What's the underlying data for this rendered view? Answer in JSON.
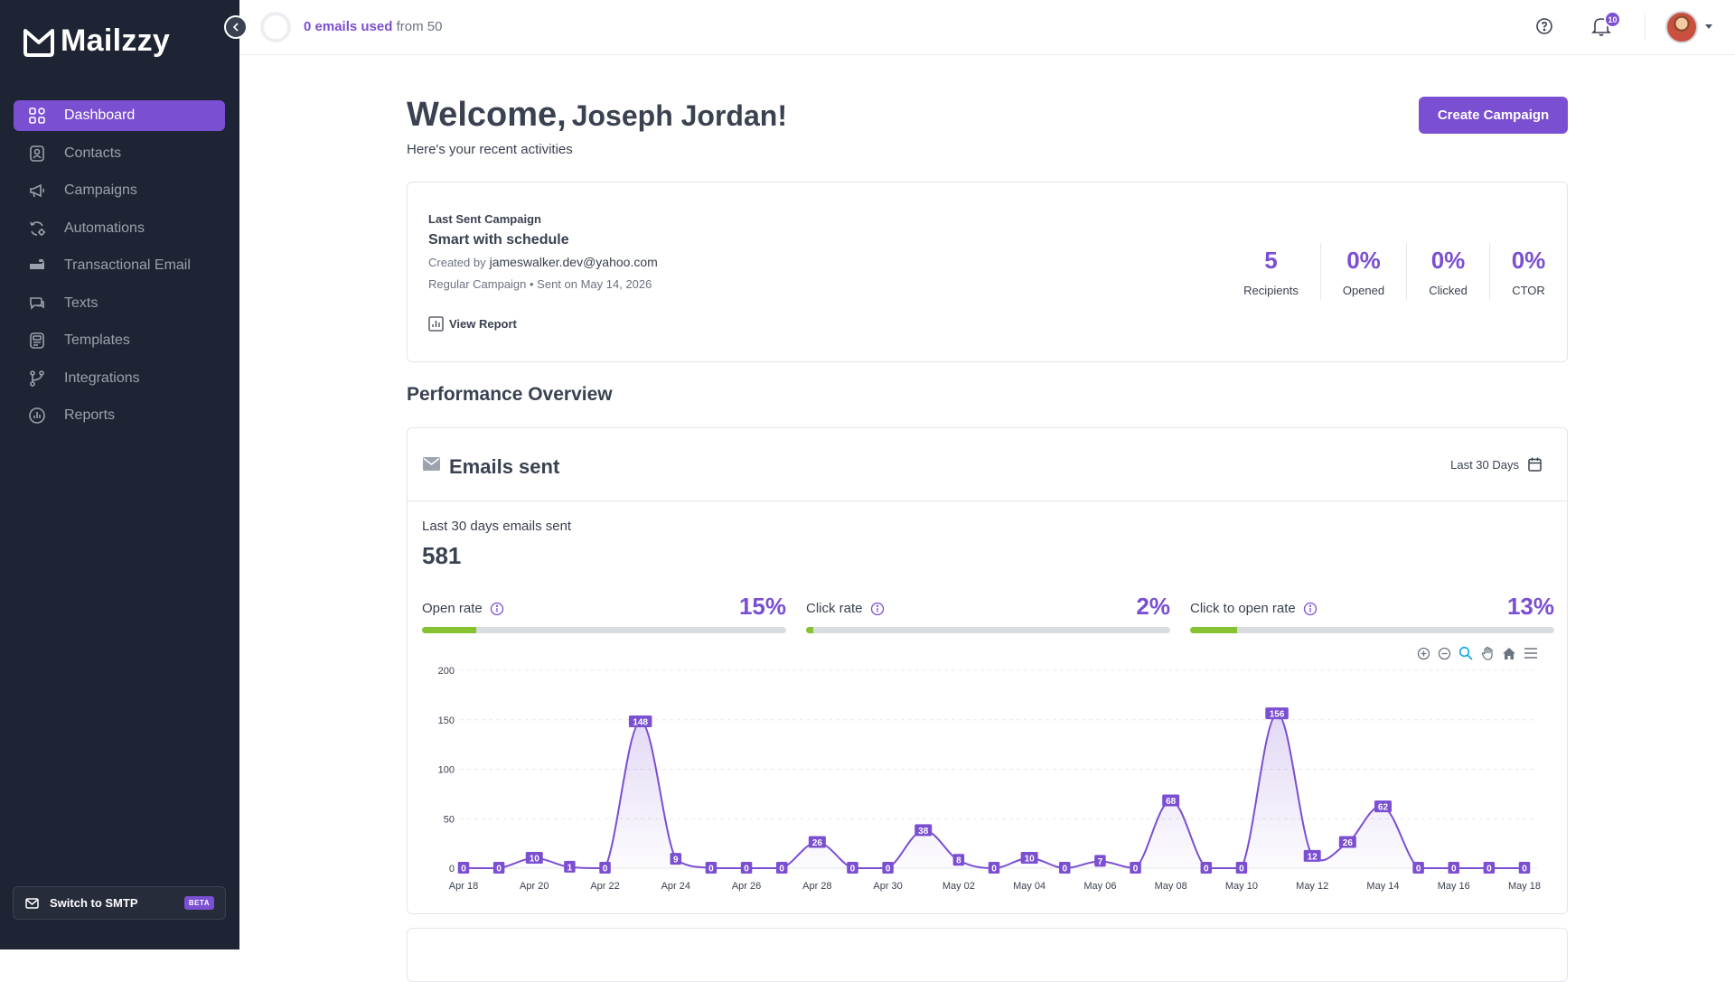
{
  "app": {
    "name": "Mailzzy"
  },
  "sidebar": {
    "items": [
      {
        "label": "Dashboard",
        "icon": "dashboard-icon",
        "active": true
      },
      {
        "label": "Contacts",
        "icon": "contacts-icon"
      },
      {
        "label": "Campaigns",
        "icon": "megaphone-icon"
      },
      {
        "label": "Automations",
        "icon": "automation-icon"
      },
      {
        "label": "Transactional Email",
        "icon": "transactional-icon"
      },
      {
        "label": "Texts",
        "icon": "chat-icon"
      },
      {
        "label": "Templates",
        "icon": "templates-icon"
      },
      {
        "label": "Integrations",
        "icon": "integrations-icon"
      },
      {
        "label": "Reports",
        "icon": "reports-icon"
      }
    ],
    "smtp_label": "Switch to SMTP",
    "beta_label": "BETA"
  },
  "topbar": {
    "usage_used": "0 emails used",
    "usage_rest": "from 50",
    "notification_count": "10"
  },
  "welcome": {
    "greeting": "Welcome,",
    "user_name": "Joseph Jordan!",
    "subtitle": "Here's your recent activities",
    "create_button": "Create Campaign"
  },
  "last_campaign": {
    "kicker": "Last Sent Campaign",
    "name": "Smart with schedule",
    "created_by_label": "Created by",
    "created_by": "jameswalker.dev@yahoo.com",
    "meta": "Regular Campaign • Sent on May 14, 2026",
    "view_report": "View Report",
    "stats": [
      {
        "value": "5",
        "label": "Recipients"
      },
      {
        "value": "0%",
        "label": "Opened"
      },
      {
        "value": "0%",
        "label": "Clicked"
      },
      {
        "value": "0%",
        "label": "CTOR"
      }
    ]
  },
  "performance": {
    "title": "Performance Overview",
    "card_title": "Emails sent",
    "range": "Last 30 Days",
    "sent_label": "Last 30 days emails sent",
    "sent_value": "581",
    "rates": [
      {
        "name": "Open rate",
        "value": "15%",
        "fill": 0.15
      },
      {
        "name": "Click rate",
        "value": "2%",
        "fill": 0.02
      },
      {
        "name": "Click to open rate",
        "value": "13%",
        "fill": 0.13
      }
    ],
    "colors": {
      "accent": "#7b4fd1",
      "bar_fill": "#86c232"
    }
  },
  "chart_data": {
    "type": "area",
    "x": [
      "Apr 18",
      "Apr 19",
      "Apr 20",
      "Apr 21",
      "Apr 22",
      "Apr 23",
      "Apr 24",
      "Apr 25",
      "Apr 26",
      "Apr 27",
      "Apr 28",
      "Apr 29",
      "Apr 30",
      "May 01",
      "May 02",
      "May 03",
      "May 04",
      "May 05",
      "May 06",
      "May 07",
      "May 08",
      "May 09",
      "May 10",
      "May 11",
      "May 12",
      "May 13",
      "May 14",
      "May 15",
      "May 16",
      "May 17",
      "May 18"
    ],
    "tick_labels": [
      "Apr 18",
      "Apr 20",
      "Apr 22",
      "Apr 24",
      "Apr 26",
      "Apr 28",
      "Apr 30",
      "May 02",
      "May 04",
      "May 06",
      "May 08",
      "May 10",
      "May 12",
      "May 14",
      "May 16",
      "May 18"
    ],
    "series": [
      {
        "values": [
          0,
          0,
          10,
          1,
          0,
          148,
          9,
          0,
          0,
          0,
          26,
          0,
          0,
          38,
          8,
          0,
          10,
          0,
          7,
          0,
          68,
          0,
          0,
          156,
          12,
          26,
          62,
          0,
          0,
          0,
          0
        ]
      }
    ],
    "ylim": [
      0,
      200
    ],
    "yticks": [
      0,
      50,
      100,
      150,
      200
    ],
    "grid": true,
    "color": "#7b4fd1"
  }
}
